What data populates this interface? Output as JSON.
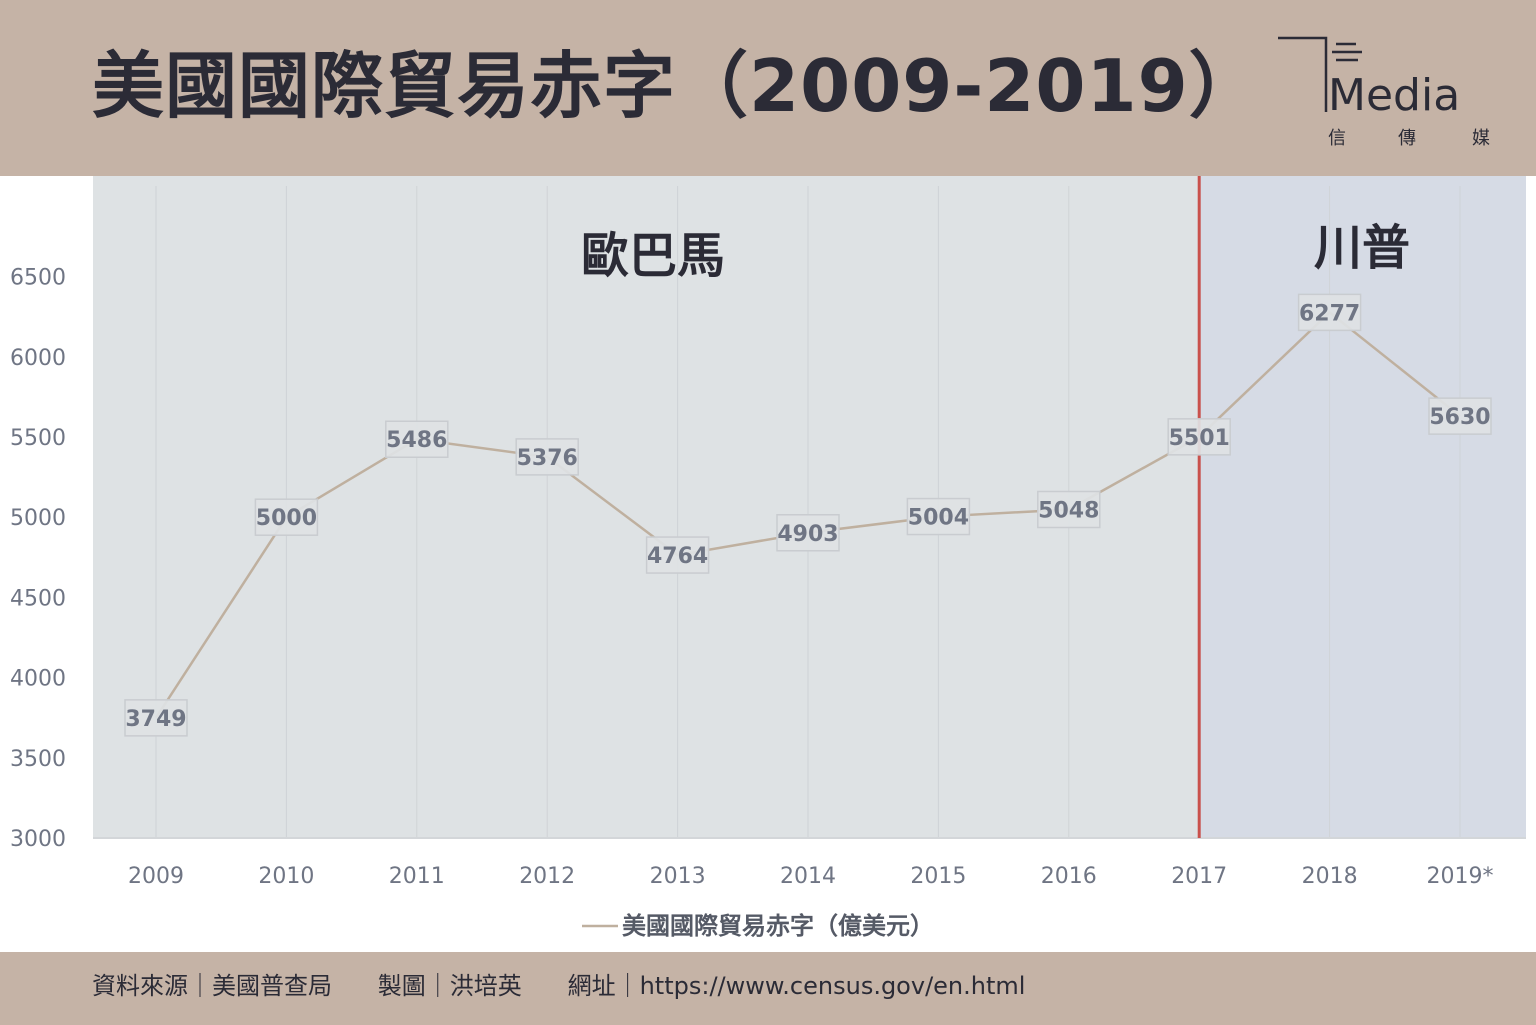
{
  "header": {
    "title": "美國國際貿易赤字（2009-2019）",
    "logo": {
      "mark": "Media",
      "subtitle_chars": [
        "信",
        "傳",
        "媒"
      ]
    }
  },
  "chart_data": {
    "type": "line",
    "categories": [
      "2009",
      "2010",
      "2011",
      "2012",
      "2013",
      "2014",
      "2015",
      "2016",
      "2017",
      "2018",
      "2019*"
    ],
    "series": [
      {
        "name": "美國國際貿易赤字（億美元）",
        "values": [
          3749,
          5000,
          5486,
          5376,
          4764,
          4903,
          5004,
          5048,
          5501,
          6277,
          5630
        ]
      }
    ],
    "ylim": [
      3000,
      7000
    ],
    "yticks": [
      3000,
      3500,
      4000,
      4500,
      5000,
      5500,
      6000,
      6500
    ],
    "legend_position": "bottom",
    "regions": [
      {
        "label": "歐巴馬",
        "from": "2009",
        "to": "2017",
        "color": "#dee2e4"
      },
      {
        "label": "川普",
        "from": "2017",
        "to": "2019*",
        "color": "#d6dbe5"
      }
    ],
    "divider_at": "2017",
    "colors": {
      "line": "#bfb09f",
      "divider": "#c9514c",
      "label_text": "#6f7584",
      "axis_text": "#6f7584"
    }
  },
  "footer": {
    "source_label": "資料來源｜美國普查局",
    "author_label": "製圖｜洪培英",
    "url_label": "網址｜https://www.census.gov/en.html"
  }
}
